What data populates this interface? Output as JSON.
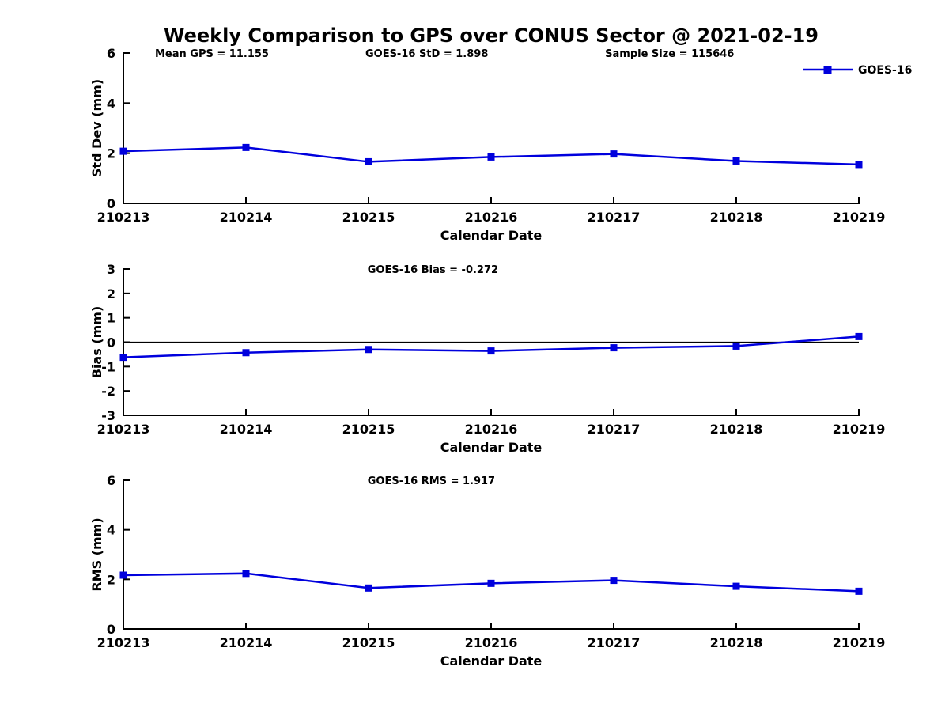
{
  "title": "Weekly Comparison to GPS over CONUS Sector @ 2021-02-19",
  "legend": {
    "label": "GOES-16",
    "position": "top-right"
  },
  "colors": {
    "series_line": "#0000dd",
    "axis": "#000000",
    "text": "#000000",
    "background": "#ffffff"
  },
  "chart_data": [
    {
      "type": "line",
      "ylabel": "Std Dev (mm)",
      "xlabel": "Calendar Date",
      "categories": [
        "210213",
        "210214",
        "210215",
        "210216",
        "210217",
        "210218",
        "210219"
      ],
      "series": [
        {
          "name": "GOES-16",
          "values": [
            2.08,
            2.23,
            1.66,
            1.85,
            1.97,
            1.69,
            1.55
          ]
        }
      ],
      "ylim": [
        0,
        6
      ],
      "yticks": [
        0,
        2,
        4,
        6
      ],
      "annotations": [
        "Mean GPS = 11.155",
        "GOES-16 StD = 1.898",
        "Sample Size = 115646"
      ],
      "zero_line": false,
      "legend_visible": true,
      "grid": false,
      "marker": "square"
    },
    {
      "type": "line",
      "ylabel": "Bias (mm)",
      "xlabel": "Calendar Date",
      "categories": [
        "210213",
        "210214",
        "210215",
        "210216",
        "210217",
        "210218",
        "210219"
      ],
      "series": [
        {
          "name": "GOES-16",
          "values": [
            -0.62,
            -0.43,
            -0.3,
            -0.36,
            -0.23,
            -0.16,
            0.23
          ]
        }
      ],
      "ylim": [
        -3,
        3
      ],
      "yticks": [
        -3,
        -2,
        -1,
        0,
        1,
        2,
        3
      ],
      "annotations": [
        "GOES-16 Bias  = -0.272"
      ],
      "zero_line": true,
      "legend_visible": false,
      "grid": false,
      "marker": "square"
    },
    {
      "type": "line",
      "ylabel": "RMS (mm)",
      "xlabel": "Calendar Date",
      "categories": [
        "210213",
        "210214",
        "210215",
        "210216",
        "210217",
        "210218",
        "210219"
      ],
      "series": [
        {
          "name": "GOES-16",
          "values": [
            2.17,
            2.24,
            1.65,
            1.84,
            1.96,
            1.72,
            1.52
          ]
        }
      ],
      "ylim": [
        0,
        6
      ],
      "yticks": [
        0,
        2,
        4,
        6
      ],
      "annotations": [
        "GOES-16 RMS = 1.917"
      ],
      "zero_line": false,
      "legend_visible": false,
      "grid": false,
      "marker": "square"
    }
  ]
}
